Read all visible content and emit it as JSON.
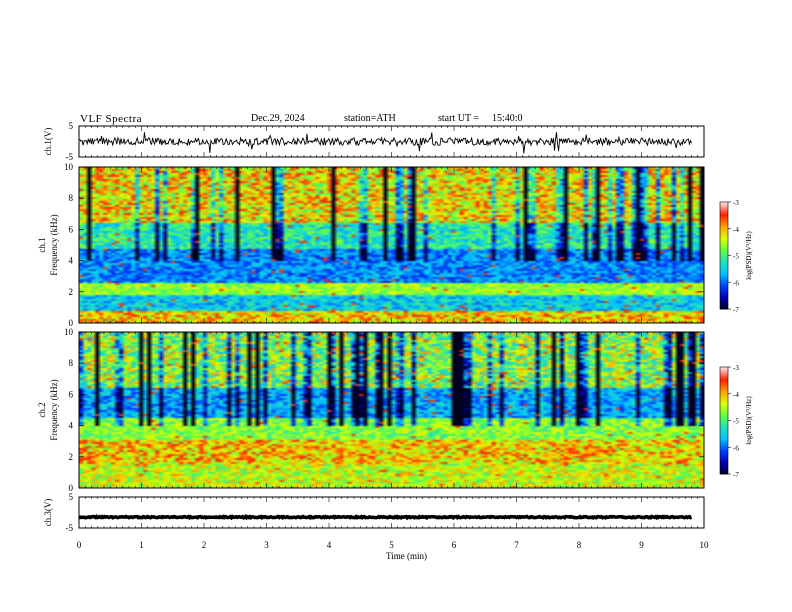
{
  "header": {
    "title": "VLF  Spectra",
    "date": "Dec.29, 2024",
    "station": "station=ATH",
    "start_label": "start  UT  =",
    "start_time": "15:40:0"
  },
  "chart_data": [
    {
      "type": "line",
      "panel": "ch1",
      "ylabel": "ch.1(V)",
      "ylim": [
        -5,
        5
      ],
      "yticks": [
        "5",
        "-5"
      ],
      "xlim": [
        0,
        10
      ],
      "description_values": {
        "baseline": 0,
        "noise_amplitude": 1.2
      }
    },
    {
      "type": "heatmap",
      "panel": "ch1-spectrogram",
      "ylabel": "ch.1\nFrequency (kHz)",
      "ylim": [
        0,
        10
      ],
      "yticks": [
        "0",
        "2",
        "4",
        "6",
        "8",
        "10"
      ],
      "xlim": [
        0,
        10
      ],
      "colorbar": {
        "label": "log(PSD)(V²/Hz)",
        "range": [
          -7,
          -3
        ],
        "ticks": [
          "-3",
          "-4",
          "-5",
          "-6",
          "-7"
        ]
      }
    },
    {
      "type": "heatmap",
      "panel": "ch2-spectrogram",
      "ylabel": "ch.2\nFrequency (kHz)",
      "ylim": [
        0,
        10
      ],
      "yticks": [
        "0",
        "2",
        "4",
        "6",
        "8",
        "10"
      ],
      "xlim": [
        0,
        10
      ],
      "colorbar": {
        "label": "log(PSD)(V²/Hz)",
        "range": [
          -7,
          -3
        ],
        "ticks": [
          "-3",
          "-4",
          "-5",
          "-6",
          "-7"
        ]
      }
    },
    {
      "type": "line",
      "panel": "ch3",
      "ylabel": "ch.3(V)",
      "ylim": [
        -5,
        5
      ],
      "yticks": [
        "5",
        "-5"
      ],
      "xlim": [
        0,
        10
      ],
      "description_values": {
        "baseline": -1.5,
        "noise_amplitude": 0.2
      }
    }
  ],
  "xaxis": {
    "label": "Time  (min)",
    "ticks": [
      "0",
      "1",
      "2",
      "3",
      "4",
      "5",
      "6",
      "7",
      "8",
      "9",
      "10"
    ]
  },
  "colors": {
    "line": "#000000",
    "axis": "#000000",
    "colormap": [
      "#000020",
      "#0000b0",
      "#0040ff",
      "#00c0ff",
      "#20e0c0",
      "#60ff40",
      "#e0ff00",
      "#ffa000",
      "#ff2000",
      "#ffe0e0"
    ]
  }
}
